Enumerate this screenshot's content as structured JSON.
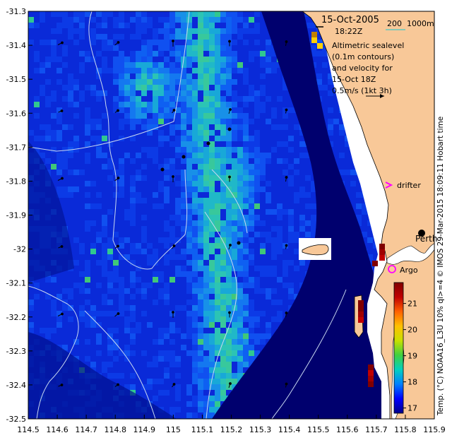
{
  "map": {
    "lon_ticks": [
      "114.5",
      "114.6",
      "114.7",
      "114.8",
      "114.9",
      "115",
      "115.1",
      "115.2",
      "115.3",
      "115.4",
      "115.5",
      "115.6",
      "115.7",
      "115.8",
      "115.9"
    ],
    "lat_ticks": [
      "-31.3",
      "-31.4",
      "-31.5",
      "-31.6",
      "-31.7",
      "-31.8",
      "-31.9",
      "-32",
      "-32.1",
      "-32.2",
      "-32.3",
      "-32.4",
      "-32.5"
    ],
    "lon_range": [
      114.5,
      115.9
    ],
    "lat_range": [
      -32.5,
      -31.3
    ],
    "land_color": "#F8C898",
    "deep_color": "#00006E"
  },
  "annotations": {
    "date": "15-Oct-2005",
    "time": "18:22Z",
    "depth_contours": "200  1000m",
    "alt_line1": "Altimetric sealevel",
    "alt_line2": "(0.1m contours)",
    "alt_line3": "and velocity for",
    "alt_line4": "15-Oct 18Z",
    "velocity_scale": "0.5m/s (1kt 3h)",
    "drifter": "drifter",
    "argo": "Argo",
    "perth": "Perth",
    "sidebar": "Temp. (°C) NOAA16_L3U 10% ql>=4  © IMOS 29-Mar-2015 18:09:11 Hobart time"
  },
  "colorbar": {
    "ticks": [
      "21",
      "20",
      "19",
      "18",
      "17"
    ],
    "values": [
      21,
      20,
      19,
      18,
      17
    ],
    "range": [
      16.8,
      21.8
    ],
    "colors": [
      "#00008B",
      "#0000FF",
      "#0080FF",
      "#00D0C0",
      "#40D040",
      "#C8E000",
      "#FFC000",
      "#FF6000",
      "#C00000",
      "#800000"
    ]
  }
}
